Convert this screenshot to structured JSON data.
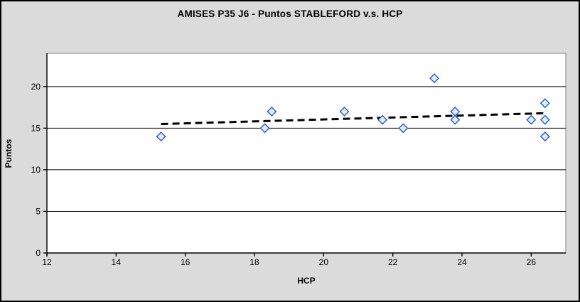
{
  "chart_data": {
    "type": "scatter",
    "title": "AMISES P35 J6 - Puntos STABLEFORD v.s. HCP",
    "xlabel": "HCP",
    "ylabel": "Puntos",
    "xlim": [
      12,
      27
    ],
    "ylim": [
      0,
      24
    ],
    "x_ticks": [
      12,
      14,
      16,
      18,
      20,
      22,
      24,
      26
    ],
    "y_ticks": [
      0,
      5,
      10,
      15,
      20
    ],
    "grid": "horizontal-only",
    "legend_position": "none",
    "series": [
      {
        "name": "Puntos STABLEFORD",
        "marker": "diamond",
        "points": [
          [
            15.3,
            14
          ],
          [
            18.3,
            15
          ],
          [
            18.5,
            17
          ],
          [
            20.6,
            17
          ],
          [
            21.7,
            16
          ],
          [
            22.3,
            15
          ],
          [
            23.2,
            21
          ],
          [
            23.8,
            17
          ],
          [
            23.8,
            16
          ],
          [
            26.0,
            16
          ],
          [
            26.4,
            18
          ],
          [
            26.4,
            16
          ],
          [
            26.4,
            14
          ]
        ]
      }
    ],
    "trendline": {
      "style": "dashed",
      "x1": 15.3,
      "y1": 15.5,
      "x2": 26.4,
      "y2": 16.8
    },
    "colors": {
      "background": "#dbdbdb",
      "plot_background": "#ffffff",
      "gridline": "#000000",
      "axis": "#000000",
      "plot_border": "#808080",
      "marker_fill": "#d3f1fb",
      "marker_border": "#3353c4",
      "trendline": "#000000",
      "text": "#000000"
    }
  }
}
